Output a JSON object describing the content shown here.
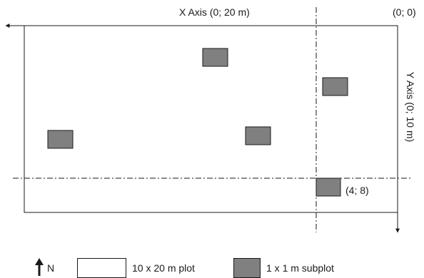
{
  "labels": {
    "x_axis": "X Axis (0; 20 m)",
    "origin": "(0; 0)",
    "y_axis": "Y Axis (0; 10 m)",
    "marked_point": "(4; 8)"
  },
  "legend": {
    "north": "N",
    "plot": "10 x 20 m plot",
    "subplot": "1 x 1 m subplot"
  },
  "colors": {
    "subplot_fill": "#808080",
    "line": "#1a1a1a",
    "plot_fill": "#ffffff"
  },
  "icons": {
    "north": "north-arrow-icon"
  }
}
